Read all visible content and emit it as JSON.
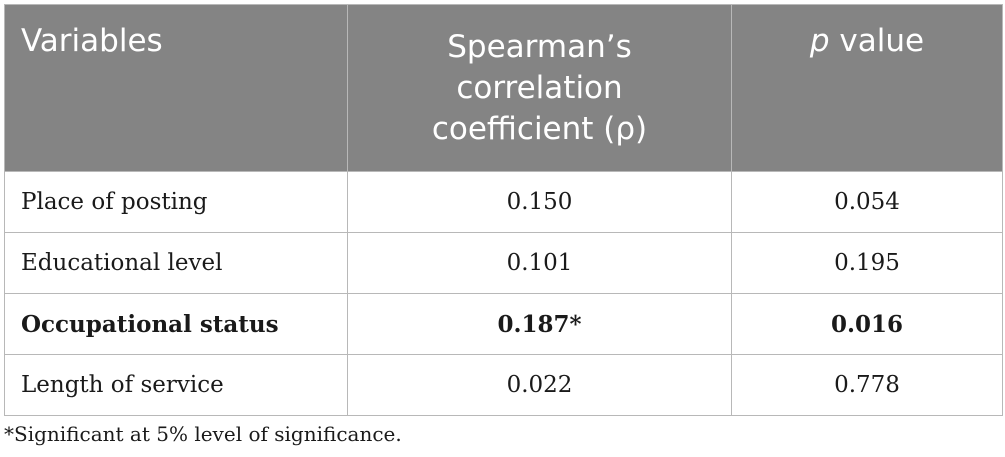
{
  "table": {
    "headers": {
      "variables": "Variables",
      "rho_line1": "Spearman’s",
      "rho_line2": "correlation",
      "rho_line3": "coefficient (ρ)",
      "p_italic": "p",
      "p_rest": " value"
    },
    "rows": [
      {
        "variable": "Place of posting",
        "rho": "0.150",
        "p": "0.054"
      },
      {
        "variable": "Educational level",
        "rho": "0.101",
        "p": "0.195"
      },
      {
        "variable": "Occupational status",
        "rho": "0.187*",
        "p": "0.016"
      },
      {
        "variable": "Length of service",
        "rho": "0.022",
        "p": "0.778"
      }
    ]
  },
  "footnote": "*Significant at 5% level of significance.",
  "colors": {
    "header_bg": "#848484",
    "header_text": "#ffffff",
    "border": "#b8b8b8"
  }
}
